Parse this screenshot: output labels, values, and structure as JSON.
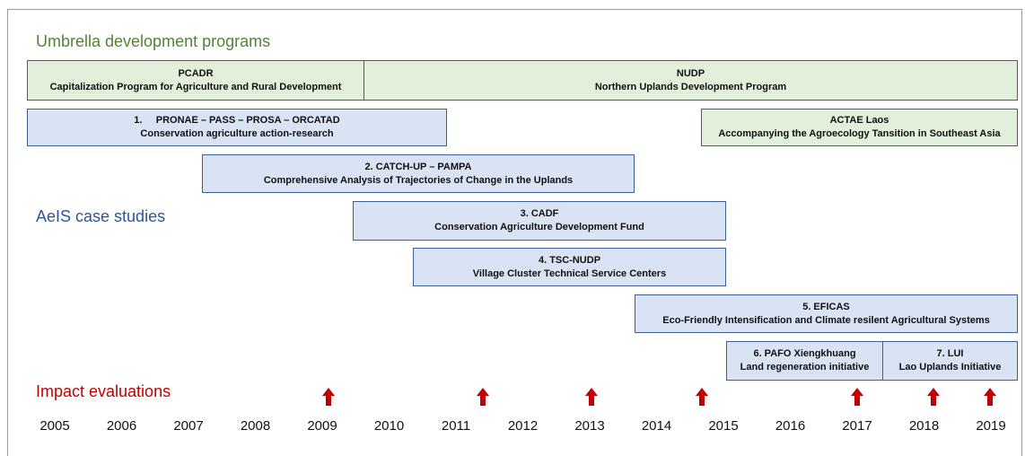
{
  "sections": {
    "umbrella": "Umbrella development programs",
    "case_studies": "AeIS case studies",
    "impact": "Impact evaluations"
  },
  "programs": [
    {
      "title": "PCADR",
      "subtitle": "Capitalization Program for Agriculture and Rural Development"
    },
    {
      "title": "NUDP",
      "subtitle": "Northern Uplands Development Program"
    },
    {
      "title": "1.     PRONAE – PASS – PROSA – ORCATAD",
      "subtitle": "Conservation agriculture action-research"
    },
    {
      "title": "ACTAE Laos",
      "subtitle": "Accompanying the Agroecology Tansition in Southeast Asia"
    },
    {
      "title": "2. CATCH-UP – PAMPA",
      "subtitle": "Comprehensive Analysis of Trajectories of Change in the Uplands"
    },
    {
      "title": "3. CADF",
      "subtitle": "Conservation Agriculture Development Fund"
    },
    {
      "title": "4. TSC-NUDP",
      "subtitle": "Village Cluster Technical Service Centers"
    },
    {
      "title": "5. EFICAS",
      "subtitle": "Eco-Friendly Intensification and Climate resilent Agricultural Systems"
    },
    {
      "title": "6. PAFO Xiengkhuang",
      "subtitle": "Land regeneration initiative"
    },
    {
      "title": "7. LUI",
      "subtitle": "Lao Uplands Initiative"
    }
  ],
  "years": [
    "2005",
    "2006",
    "2007",
    "2008",
    "2009",
    "2010",
    "2011",
    "2012",
    "2013",
    "2014",
    "2015",
    "2016",
    "2017",
    "2018",
    "2019"
  ]
}
